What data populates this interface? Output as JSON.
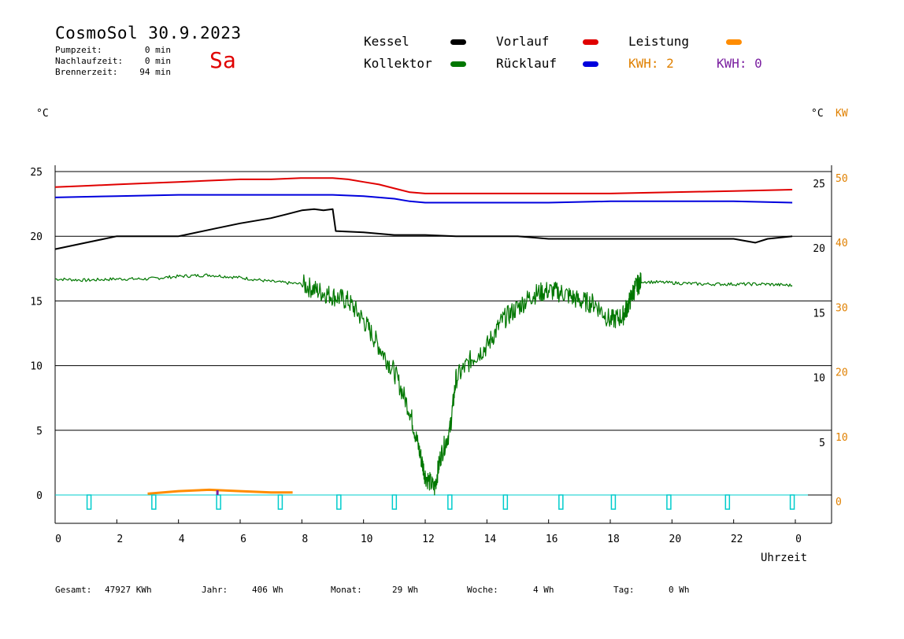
{
  "header": {
    "title": "CosmoSol 30.9.2023",
    "day": "Sa",
    "stats": [
      {
        "label": "Pumpzeit:",
        "value": "0 min"
      },
      {
        "label": "Nachlaufzeit:",
        "value": "0 min"
      },
      {
        "label": "Brennerzeit:",
        "value": "94 min"
      }
    ]
  },
  "legend": {
    "kessel": "Kessel",
    "vorlauf": "Vorlauf",
    "leistung": "Leistung",
    "kollektor": "Kollektor",
    "ruecklauf": "Rücklauf",
    "kwh_orange": "KWH: 2",
    "kwh_purple": "KWH: 0"
  },
  "colors": {
    "kessel": "#000000",
    "vorlauf": "#e00000",
    "ruecklauf": "#0000dd",
    "kollektor": "#007700",
    "leistung": "#ff8c00",
    "purple": "#7a1fa0",
    "pump": "#00cccc",
    "axis_orange": "#e08000"
  },
  "axes": {
    "left_unit": "°C",
    "right_unit": "°C",
    "right_unit2": "KW",
    "xlabel": "Uhrzeit"
  },
  "footer": [
    {
      "label": "Gesamt:",
      "value": "47927 KWh"
    },
    {
      "label": "Jahr:",
      "value": "406 Wh"
    },
    {
      "label": "Monat:",
      "value": "29 Wh"
    },
    {
      "label": "Woche:",
      "value": "4 Wh"
    },
    {
      "label": "Tag:",
      "value": "0 Wh"
    }
  ],
  "chart_data": {
    "type": "line",
    "xlim": [
      0,
      24
    ],
    "ylim": [
      -2,
      25
    ],
    "x_ticks": [
      "0",
      "2",
      "4",
      "6",
      "8",
      "10",
      "12",
      "14",
      "16",
      "18",
      "20",
      "22",
      "0"
    ],
    "y_ticks_left": [
      "25",
      "20",
      "15",
      "10",
      "5",
      "0"
    ],
    "y_ticks_right_inner": [
      "25",
      "20",
      "15",
      "10",
      "5"
    ],
    "y_ticks_right_kw": [
      "50",
      "40",
      "30",
      "20",
      "10",
      "0"
    ],
    "grid": "horizontal",
    "series": [
      {
        "name": "Vorlauf",
        "color": "#e00000",
        "x": [
          0,
          1,
          2,
          3,
          4,
          5,
          6,
          7,
          8,
          8.5,
          9,
          9.5,
          10,
          10.5,
          11,
          11.5,
          12,
          13,
          14,
          16,
          18,
          20,
          22,
          23.9
        ],
        "y": [
          23.8,
          23.9,
          24.0,
          24.1,
          24.2,
          24.3,
          24.4,
          24.4,
          24.5,
          24.5,
          24.5,
          24.4,
          24.2,
          24.0,
          23.7,
          23.4,
          23.3,
          23.3,
          23.3,
          23.3,
          23.3,
          23.4,
          23.5,
          23.6
        ]
      },
      {
        "name": "Rücklauf",
        "color": "#0000dd",
        "x": [
          0,
          2,
          4,
          6,
          8,
          9,
          10,
          11,
          11.5,
          12,
          14,
          16,
          18,
          20,
          22,
          23.9
        ],
        "y": [
          23.0,
          23.1,
          23.2,
          23.2,
          23.2,
          23.2,
          23.1,
          22.9,
          22.7,
          22.6,
          22.6,
          22.6,
          22.7,
          22.7,
          22.7,
          22.6
        ]
      },
      {
        "name": "Kessel",
        "color": "#000000",
        "x": [
          0,
          1,
          2,
          4,
          4.2,
          5.2,
          6,
          7,
          7.5,
          8,
          8.4,
          8.7,
          9,
          9.1,
          10,
          11,
          12,
          13,
          14,
          15,
          16,
          18,
          20,
          21,
          22,
          22.7,
          23.1,
          23.9
        ],
        "y": [
          19.0,
          19.5,
          20.0,
          20.0,
          20.1,
          20.6,
          21.0,
          21.4,
          21.7,
          22.0,
          22.1,
          22.0,
          22.1,
          20.4,
          20.3,
          20.1,
          20.1,
          20.0,
          20.0,
          20.0,
          19.8,
          19.8,
          19.8,
          19.8,
          19.8,
          19.5,
          19.8,
          20.0
        ]
      },
      {
        "name": "Kollektor",
        "color": "#007700",
        "x": [
          0,
          1,
          2,
          3,
          4,
          5,
          6,
          7,
          8,
          8.5,
          9,
          9.5,
          10,
          10.5,
          11,
          11.5,
          11.8,
          12,
          12.3,
          12.5,
          12.8,
          13,
          13.5,
          14,
          14.5,
          15,
          15.5,
          16,
          16.5,
          17,
          17.5,
          18,
          18.4,
          18.6,
          18.8,
          19,
          20,
          21,
          22,
          23,
          23.9
        ],
        "y": [
          16.7,
          16.6,
          16.7,
          16.7,
          16.9,
          17.0,
          16.8,
          16.5,
          16.3,
          15.8,
          15.4,
          15.0,
          13.5,
          11.5,
          9.5,
          6.5,
          3.5,
          1.5,
          0.5,
          3.0,
          5.0,
          9.0,
          10.5,
          11.5,
          13.5,
          14.5,
          15.5,
          15.8,
          15.6,
          15.0,
          14.8,
          13.5,
          13.8,
          14.8,
          16.0,
          16.5,
          16.4,
          16.3,
          16.3,
          16.3,
          16.2
        ]
      },
      {
        "name": "Leistung",
        "color": "#ff8c00",
        "x": [
          3.0,
          3.5,
          4.0,
          5.0,
          6.0,
          7.0,
          7.7
        ],
        "y": [
          0.1,
          0.2,
          0.3,
          0.4,
          0.3,
          0.2,
          0.2
        ]
      }
    ],
    "pump_markers_x": [
      1.1,
      3.2,
      5.3,
      7.3,
      9.2,
      11.0,
      12.8,
      14.6,
      16.4,
      18.1,
      19.9,
      21.8,
      23.9
    ],
    "purple_marker_x": [
      5.25
    ]
  }
}
